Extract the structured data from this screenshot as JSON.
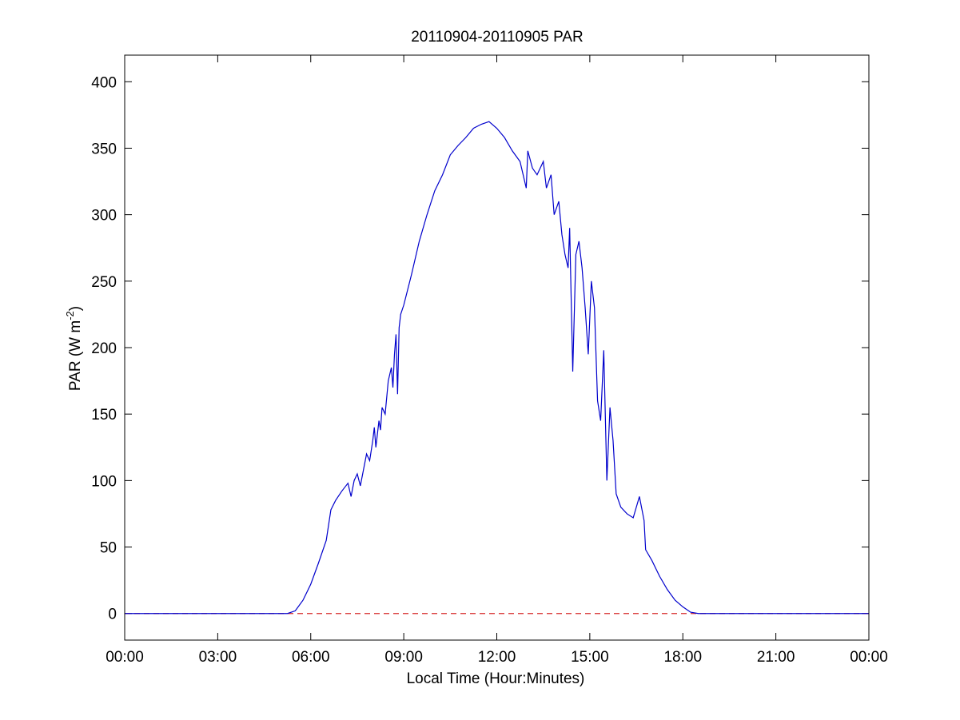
{
  "chart_data": {
    "type": "line",
    "title": "20110904-20110905 PAR",
    "xlabel": "Local Time (Hour:Minutes)",
    "ylabel_main": "PAR (W m",
    "ylabel_sup": "-2",
    "ylabel_close": ")",
    "xlim": [
      0,
      24
    ],
    "ylim": [
      -20,
      420
    ],
    "xticks": [
      {
        "value": 0,
        "label": "00:00"
      },
      {
        "value": 3,
        "label": "03:00"
      },
      {
        "value": 6,
        "label": "06:00"
      },
      {
        "value": 9,
        "label": "09:00"
      },
      {
        "value": 12,
        "label": "12:00"
      },
      {
        "value": 15,
        "label": "15:00"
      },
      {
        "value": 18,
        "label": "18:00"
      },
      {
        "value": 21,
        "label": "21:00"
      },
      {
        "value": 24,
        "label": "00:00"
      }
    ],
    "yticks": [
      {
        "value": 0,
        "label": "0"
      },
      {
        "value": 50,
        "label": "50"
      },
      {
        "value": 100,
        "label": "100"
      },
      {
        "value": 150,
        "label": "150"
      },
      {
        "value": 200,
        "label": "200"
      },
      {
        "value": 250,
        "label": "250"
      },
      {
        "value": 300,
        "label": "300"
      },
      {
        "value": 350,
        "label": "350"
      },
      {
        "value": 400,
        "label": "400"
      }
    ],
    "grid": false,
    "reference_line": {
      "y": 0,
      "style": "dashed",
      "color": "#d62728"
    },
    "series": [
      {
        "color": "#0000cc",
        "x": [
          0,
          5.25,
          5.5,
          5.75,
          6.0,
          6.25,
          6.5,
          6.65,
          6.8,
          7.0,
          7.2,
          7.3,
          7.4,
          7.5,
          7.6,
          7.7,
          7.8,
          7.9,
          8.0,
          8.05,
          8.1,
          8.2,
          8.25,
          8.3,
          8.4,
          8.5,
          8.6,
          8.65,
          8.7,
          8.75,
          8.8,
          8.85,
          8.9,
          9.0,
          9.25,
          9.5,
          9.75,
          10.0,
          10.25,
          10.5,
          10.75,
          11.0,
          11.25,
          11.5,
          11.75,
          12.0,
          12.25,
          12.5,
          12.75,
          12.95,
          13.0,
          13.15,
          13.3,
          13.5,
          13.6,
          13.75,
          13.85,
          14.0,
          14.1,
          14.2,
          14.3,
          14.35,
          14.45,
          14.55,
          14.65,
          14.75,
          14.85,
          14.95,
          15.05,
          15.15,
          15.25,
          15.35,
          15.45,
          15.55,
          15.65,
          15.75,
          15.85,
          16.0,
          16.2,
          16.4,
          16.6,
          16.75,
          16.8,
          17.0,
          17.25,
          17.5,
          17.75,
          18.0,
          18.25,
          18.5,
          24
        ],
        "y": [
          0,
          0,
          2,
          10,
          22,
          38,
          55,
          78,
          85,
          92,
          98,
          88,
          100,
          105,
          96,
          108,
          120,
          115,
          130,
          140,
          125,
          145,
          138,
          155,
          150,
          175,
          185,
          170,
          195,
          210,
          165,
          215,
          225,
          232,
          255,
          280,
          300,
          318,
          330,
          345,
          352,
          358,
          365,
          368,
          370,
          365,
          358,
          348,
          340,
          320,
          348,
          335,
          330,
          340,
          320,
          330,
          300,
          310,
          285,
          270,
          260,
          290,
          182,
          270,
          280,
          260,
          230,
          195,
          250,
          230,
          160,
          145,
          198,
          100,
          155,
          130,
          90,
          80,
          75,
          72,
          88,
          70,
          48,
          40,
          28,
          18,
          10,
          5,
          1,
          0,
          0
        ]
      }
    ]
  }
}
